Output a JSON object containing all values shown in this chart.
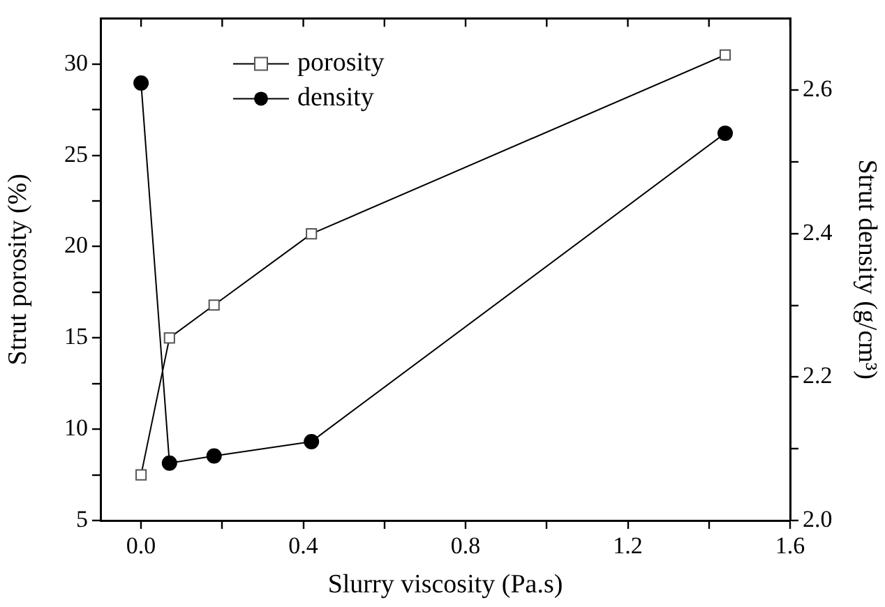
{
  "chart_data": {
    "type": "line",
    "xlabel": "Slurry viscosity (Pa.s)",
    "ylabel": "Strut porosity (%)",
    "y2label": "Strut density (g/cm³)",
    "x": [
      0,
      0.07,
      0.18,
      0.42,
      1.44
    ],
    "series": [
      {
        "name": "porosity",
        "color": "#000000",
        "marker": "square",
        "values": [
          7.5,
          15.0,
          16.8,
          20.7,
          30.5
        ]
      },
      {
        "name": "density",
        "color": "#000000",
        "marker": "circle",
        "axis": "y2",
        "values": [
          2.61,
          2.08,
          2.09,
          2.11,
          2.54
        ]
      }
    ],
    "xlim": [
      -0.1,
      1.6
    ],
    "xticks": [
      {
        "value": 0,
        "label": "0.0"
      },
      {
        "value": 0.2,
        "label": null
      },
      0.4,
      {
        "value": 0.6,
        "label": null
      },
      0.8,
      {
        "value": 1.0,
        "label": null
      },
      1.2,
      {
        "value": 1.4,
        "label": null
      },
      1.6
    ],
    "ylim": [
      5,
      32.5
    ],
    "yticks": [
      5,
      {
        "value": 7.5,
        "label": null
      },
      10,
      {
        "value": 12.5,
        "label": null
      },
      15,
      {
        "value": 17.5,
        "label": null
      },
      20,
      {
        "value": 22.5,
        "label": null
      },
      25,
      {
        "value": 27.5,
        "label": null
      },
      30
    ],
    "y2lim": [
      2.0,
      2.7
    ],
    "y2ticks": [
      {
        "value": 2.0,
        "label": "2.0"
      },
      {
        "value": 2.1,
        "label": null
      },
      2.2,
      {
        "value": 2.3,
        "label": null
      },
      2.4,
      {
        "value": 2.5,
        "label": null
      },
      2.6
    ],
    "legend": "top left",
    "grid": false,
    "line_style": "solid"
  }
}
